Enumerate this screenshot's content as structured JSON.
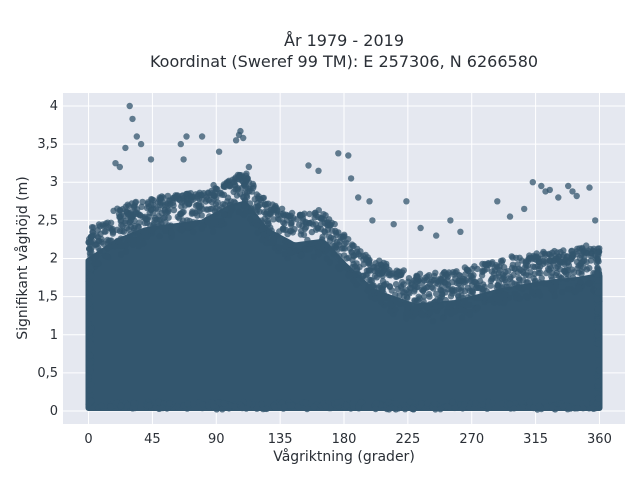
{
  "chart_data": {
    "type": "scatter",
    "title_line1": "År 1979 - 2019",
    "title_line2": "Koordinat (Sweref 99 TM): E 257306, N 6266580",
    "xlabel": "Vågriktning (grader)",
    "ylabel": "Signifikant våghöjd (m)",
    "xlim": [
      -18,
      378
    ],
    "ylim": [
      -0.17,
      4.17
    ],
    "x_ticks": [
      0,
      45,
      90,
      135,
      180,
      225,
      270,
      315,
      360
    ],
    "x_tick_labels": [
      "0",
      "45",
      "90",
      "135",
      "180",
      "225",
      "270",
      "315",
      "360"
    ],
    "y_ticks": [
      0,
      0.5,
      1,
      1.5,
      2,
      2.5,
      3,
      3.5,
      4
    ],
    "y_tick_labels": [
      "0",
      "0,5",
      "1",
      "1,5",
      "2",
      "2,5",
      "3",
      "3,5",
      "4"
    ],
    "marker_color": "#33566e",
    "plot_background": "#e5e8f0",
    "grid": true,
    "upper_envelope": [
      {
        "x": 0,
        "y": 2.35
      },
      {
        "x": 20,
        "y": 2.6
      },
      {
        "x": 40,
        "y": 2.75
      },
      {
        "x": 60,
        "y": 2.8
      },
      {
        "x": 80,
        "y": 2.85
      },
      {
        "x": 100,
        "y": 3.05
      },
      {
        "x": 110,
        "y": 3.1
      },
      {
        "x": 125,
        "y": 2.75
      },
      {
        "x": 145,
        "y": 2.55
      },
      {
        "x": 165,
        "y": 2.6
      },
      {
        "x": 180,
        "y": 2.3
      },
      {
        "x": 200,
        "y": 1.95
      },
      {
        "x": 230,
        "y": 1.75
      },
      {
        "x": 260,
        "y": 1.8
      },
      {
        "x": 290,
        "y": 1.95
      },
      {
        "x": 320,
        "y": 2.05
      },
      {
        "x": 345,
        "y": 2.1
      },
      {
        "x": 360,
        "y": 2.15
      }
    ],
    "outliers": [
      {
        "x": 29,
        "y": 4.0
      },
      {
        "x": 31,
        "y": 3.83
      },
      {
        "x": 34,
        "y": 3.6
      },
      {
        "x": 19,
        "y": 3.25
      },
      {
        "x": 22,
        "y": 3.2
      },
      {
        "x": 26,
        "y": 3.45
      },
      {
        "x": 37,
        "y": 3.5
      },
      {
        "x": 44,
        "y": 3.3
      },
      {
        "x": 65,
        "y": 3.5
      },
      {
        "x": 67,
        "y": 3.3
      },
      {
        "x": 69,
        "y": 3.6
      },
      {
        "x": 80,
        "y": 3.6
      },
      {
        "x": 92,
        "y": 3.4
      },
      {
        "x": 104,
        "y": 3.55
      },
      {
        "x": 106,
        "y": 3.62
      },
      {
        "x": 107,
        "y": 3.67
      },
      {
        "x": 109,
        "y": 3.58
      },
      {
        "x": 113,
        "y": 3.2
      },
      {
        "x": 155,
        "y": 3.22
      },
      {
        "x": 162,
        "y": 3.15
      },
      {
        "x": 176,
        "y": 3.38
      },
      {
        "x": 183,
        "y": 3.35
      },
      {
        "x": 185,
        "y": 3.05
      },
      {
        "x": 190,
        "y": 2.8
      },
      {
        "x": 198,
        "y": 2.75
      },
      {
        "x": 200,
        "y": 2.5
      },
      {
        "x": 215,
        "y": 2.45
      },
      {
        "x": 224,
        "y": 2.75
      },
      {
        "x": 234,
        "y": 2.4
      },
      {
        "x": 245,
        "y": 2.3
      },
      {
        "x": 255,
        "y": 2.5
      },
      {
        "x": 262,
        "y": 2.35
      },
      {
        "x": 288,
        "y": 2.75
      },
      {
        "x": 297,
        "y": 2.55
      },
      {
        "x": 307,
        "y": 2.65
      },
      {
        "x": 313,
        "y": 3.0
      },
      {
        "x": 319,
        "y": 2.95
      },
      {
        "x": 322,
        "y": 2.88
      },
      {
        "x": 325,
        "y": 2.9
      },
      {
        "x": 331,
        "y": 2.8
      },
      {
        "x": 338,
        "y": 2.95
      },
      {
        "x": 341,
        "y": 2.88
      },
      {
        "x": 344,
        "y": 2.82
      },
      {
        "x": 353,
        "y": 2.93
      },
      {
        "x": 357,
        "y": 2.5
      }
    ]
  }
}
